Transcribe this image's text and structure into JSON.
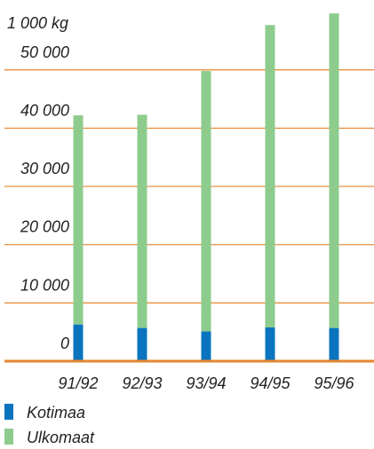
{
  "chart_data": {
    "type": "stacked_bar",
    "y_label": "1 000 kg",
    "categories": [
      "91/92",
      "92/93",
      "93/94",
      "94/95",
      "95/96"
    ],
    "series": [
      {
        "name": "Kotimaa",
        "color": "#0a74bf",
        "values": [
          6300,
          5700,
          5100,
          5800,
          5700
        ]
      },
      {
        "name": "Ulkomaat",
        "color": "#8dcc8d",
        "values": [
          35900,
          36600,
          44700,
          51900,
          54000
        ]
      }
    ],
    "ylim": [
      0,
      62000
    ],
    "yticks": [
      0,
      {
        "value": 10000,
        "label": "10 000"
      },
      {
        "value": 20000,
        "label": "20 000"
      },
      {
        "value": 30000,
        "label": "30 000"
      },
      {
        "value": 40000,
        "label": "40 000"
      },
      {
        "value": 50000,
        "label": "50 000"
      }
    ],
    "grid": true,
    "grid_color": "#e6862e",
    "legend": "bottom-left"
  }
}
